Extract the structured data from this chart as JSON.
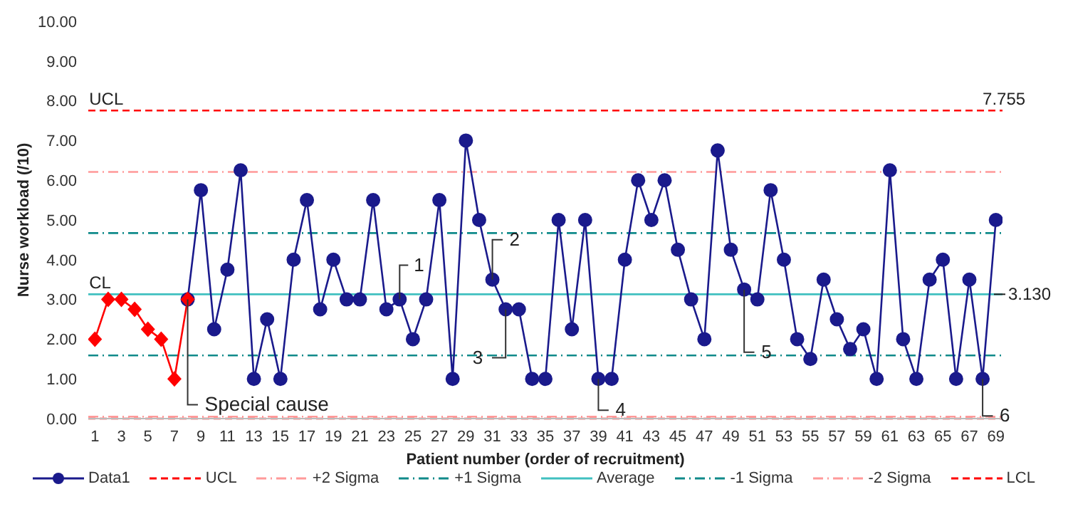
{
  "chart_data": {
    "type": "line",
    "xlabel": "Patient number (order of recruitment)",
    "ylabel": "Nurse workload (/10)",
    "x": [
      1,
      2,
      3,
      4,
      5,
      6,
      7,
      8,
      9,
      10,
      11,
      12,
      13,
      14,
      15,
      16,
      17,
      18,
      19,
      20,
      21,
      22,
      23,
      24,
      25,
      26,
      27,
      28,
      29,
      30,
      31,
      32,
      33,
      34,
      35,
      36,
      37,
      38,
      39,
      40,
      41,
      42,
      43,
      44,
      45,
      46,
      47,
      48,
      49,
      50,
      51,
      52,
      53,
      54,
      55,
      56,
      57,
      58,
      59,
      60,
      61,
      62,
      63,
      64,
      65,
      66,
      67,
      68,
      69
    ],
    "xlim": [
      0.5,
      69.5
    ],
    "xticks": [
      1,
      3,
      5,
      7,
      9,
      11,
      13,
      15,
      17,
      19,
      21,
      23,
      25,
      27,
      29,
      31,
      33,
      35,
      37,
      39,
      41,
      43,
      45,
      47,
      49,
      51,
      53,
      55,
      57,
      59,
      61,
      63,
      65,
      67,
      69
    ],
    "ylim": [
      0,
      10
    ],
    "yticks": [
      {
        "value": 0,
        "label": "0.00"
      },
      {
        "value": 1,
        "label": "1.00"
      },
      {
        "value": 2,
        "label": "2.00"
      },
      {
        "value": 3,
        "label": "3.00"
      },
      {
        "value": 4,
        "label": "4.00"
      },
      {
        "value": 5,
        "label": "5.00"
      },
      {
        "value": 6,
        "label": "6.00"
      },
      {
        "value": 7,
        "label": "7.00"
      },
      {
        "value": 8,
        "label": "8.00"
      },
      {
        "value": 9,
        "label": "9.00"
      },
      {
        "value": 10,
        "label": "10.00"
      }
    ],
    "grid": false,
    "legend": "bottom",
    "series": [
      {
        "name": "Data1",
        "color": "#1a1a8c",
        "marker": "circle",
        "values": [
          null,
          null,
          null,
          null,
          null,
          null,
          null,
          3,
          5.75,
          2.25,
          3.75,
          6.25,
          1,
          2.5,
          1,
          4,
          5.5,
          2.75,
          4,
          3,
          3,
          5.5,
          2.75,
          3,
          2,
          3,
          5.5,
          1,
          7,
          5,
          3.5,
          2.75,
          2.75,
          1,
          1,
          5,
          2.25,
          5,
          1,
          1,
          4,
          6,
          5,
          6,
          4.25,
          3,
          2,
          6.75,
          4.25,
          3.25,
          3,
          5.75,
          4,
          2,
          1.5,
          3.5,
          2.5,
          1.75,
          2.25,
          1,
          6.25,
          2,
          1,
          3.5,
          4,
          1,
          3.5,
          1,
          5
        ]
      },
      {
        "color": "#ff0000",
        "marker": "diamond",
        "values": [
          2,
          3,
          3,
          2.75,
          2.25,
          2,
          1,
          3,
          null,
          null,
          null,
          null,
          null,
          null,
          null,
          null,
          null,
          null,
          null,
          null,
          null,
          null,
          null,
          null,
          null,
          null,
          null,
          null,
          null,
          null,
          null,
          null,
          null,
          null,
          null,
          null,
          null,
          null,
          null,
          null,
          null,
          null,
          null,
          null,
          null,
          null,
          null,
          null,
          null,
          null,
          null,
          null,
          null,
          null,
          null,
          null,
          null,
          null,
          null,
          null,
          null,
          null,
          null,
          null,
          null,
          null,
          null,
          null,
          null
        ]
      }
    ],
    "ref_lines": [
      {
        "axis": "y",
        "value": 7.755,
        "label": "UCL",
        "color": "#ff0000",
        "line_style": "dashed"
      },
      {
        "axis": "y",
        "value": 6.21,
        "label": "+2 Sigma",
        "color": "#ff9999",
        "line_style": "dashdot"
      },
      {
        "axis": "y",
        "value": 4.67,
        "label": "+1 Sigma",
        "color": "#108a8a",
        "line_style": "dashdot"
      },
      {
        "axis": "y",
        "value": 3.13,
        "label": "Average",
        "color": "#40c0c0",
        "line_style": "solid"
      },
      {
        "axis": "y",
        "value": 1.59,
        "label": "-1 Sigma",
        "color": "#108a8a",
        "line_style": "dashdot"
      },
      {
        "axis": "y",
        "value": 0.05,
        "label": "-2 Sigma",
        "color": "#ff9999",
        "line_style": "dashdot"
      },
      {
        "axis": "y",
        "value": 0,
        "label": "LCL",
        "color": "#ff0000",
        "line_style": "dashed"
      }
    ],
    "annotations": [
      {
        "text": "UCL",
        "x": 1,
        "y": 7.755
      },
      {
        "text": "CL",
        "x": 1,
        "y": 3.13
      },
      {
        "text": "7.755",
        "x": 68,
        "y": 7.755
      },
      {
        "text": "3.130",
        "x": 69.5,
        "y": 3.13
      },
      {
        "text": "Special cause",
        "x": 8,
        "y": 3
      },
      {
        "text": "1",
        "x": 24,
        "y": 3
      },
      {
        "text": "2",
        "x": 31,
        "y": 3.5
      },
      {
        "text": "3",
        "x": 32,
        "y": 2.75
      },
      {
        "text": "4",
        "x": 39,
        "y": 1
      },
      {
        "text": "5",
        "x": 50,
        "y": 3.25
      },
      {
        "text": "6",
        "x": 68,
        "y": 1
      }
    ]
  }
}
